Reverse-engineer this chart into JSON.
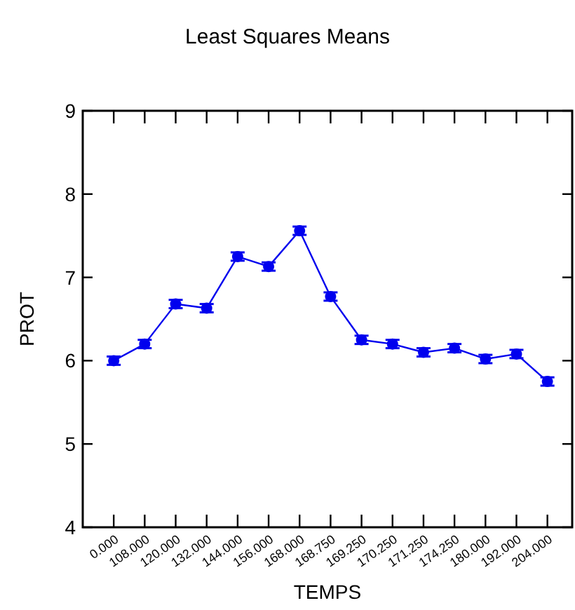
{
  "chart_data": {
    "type": "line",
    "title": "Least Squares Means",
    "xlabel": "TEMPS",
    "ylabel": "PROT",
    "categories": [
      "0.000",
      "108.000",
      "120.000",
      "132.000",
      "144.000",
      "156.000",
      "168.000",
      "168.750",
      "169.250",
      "170.250",
      "171.250",
      "174.250",
      "180.000",
      "192.000",
      "204.000"
    ],
    "series": [
      {
        "color": "#0000ee",
        "values": [
          6.0,
          6.2,
          6.68,
          6.63,
          7.25,
          7.13,
          7.56,
          6.77,
          6.25,
          6.2,
          6.1,
          6.15,
          6.02,
          6.08,
          5.75
        ],
        "errors": [
          0.05,
          0.05,
          0.05,
          0.05,
          0.05,
          0.05,
          0.05,
          0.05,
          0.05,
          0.05,
          0.05,
          0.05,
          0.05,
          0.05,
          0.05
        ]
      }
    ],
    "ylim": [
      4,
      9
    ],
    "yticks": [
      4,
      5,
      6,
      7,
      8,
      9
    ],
    "marker": "circle",
    "line_style": "solid",
    "grid": false
  }
}
